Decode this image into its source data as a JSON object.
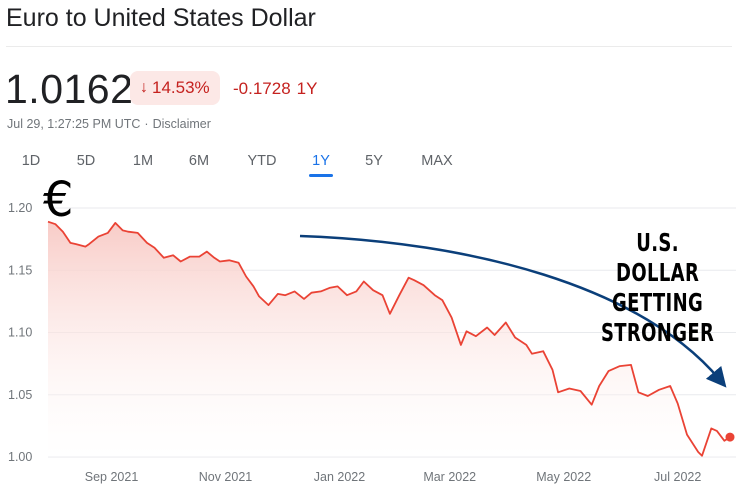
{
  "header": {
    "title": "Euro to United States Dollar",
    "price": "1.0162",
    "percent_change": "14.53%",
    "abs_change": "-0.1728",
    "period": "1Y",
    "timestamp": "Jul 29, 1:27:25 PM UTC",
    "disclaimer": "Disclaimer"
  },
  "ranges": [
    "1D",
    "5D",
    "1M",
    "6M",
    "YTD",
    "1Y",
    "5Y",
    "MAX"
  ],
  "active_range": "1Y",
  "colors": {
    "line": "#ea4335",
    "fill_top": "#f8c9c4",
    "badge_bg": "#fce8e6",
    "badge_text": "#c5221f",
    "accent": "#1a73e8",
    "arrow": "#0b3f7a"
  },
  "annotation": {
    "symbol": "€",
    "lines": [
      "U.S. DOLLAR",
      "GETTING",
      "STRONGER"
    ]
  },
  "chart_data": {
    "type": "area",
    "ylim": [
      1.0,
      1.2
    ],
    "grid": true,
    "yticks": [
      "1.20",
      "1.15",
      "1.10",
      "1.05",
      "1.00"
    ],
    "ytick_values": [
      1.2,
      1.15,
      1.1,
      1.05,
      1.0
    ],
    "xticks": [
      "Sep 2021",
      "Nov 2021",
      "Jan 2022",
      "Mar 2022",
      "May 2022",
      "Jul 2022"
    ],
    "xtick_values": [
      "2021-09-01",
      "2021-11-01",
      "2022-01-01",
      "2022-03-01",
      "2022-05-01",
      "2022-07-01"
    ],
    "x_range": [
      "2021-07-29",
      "2022-07-29"
    ],
    "series": [
      {
        "x": [
          "2021-07-29",
          "2021-08-02",
          "2021-08-06",
          "2021-08-10",
          "2021-08-13",
          "2021-08-18",
          "2021-08-20",
          "2021-08-25",
          "2021-08-30",
          "2021-09-03",
          "2021-09-07",
          "2021-09-10",
          "2021-09-15",
          "2021-09-20",
          "2021-09-24",
          "2021-09-29",
          "2021-10-04",
          "2021-10-08",
          "2021-10-13",
          "2021-10-18",
          "2021-10-22",
          "2021-10-26",
          "2021-10-29",
          "2021-11-03",
          "2021-11-08",
          "2021-11-12",
          "2021-11-16",
          "2021-11-19",
          "2021-11-24",
          "2021-11-29",
          "2021-12-03",
          "2021-12-08",
          "2021-12-13",
          "2021-12-17",
          "2021-12-22",
          "2021-12-27",
          "2021-12-31",
          "2022-01-05",
          "2022-01-10",
          "2022-01-14",
          "2022-01-19",
          "2022-01-24",
          "2022-01-28",
          "2022-02-02",
          "2022-02-07",
          "2022-02-10",
          "2022-02-15",
          "2022-02-21",
          "2022-02-25",
          "2022-03-02",
          "2022-03-07",
          "2022-03-10",
          "2022-03-15",
          "2022-03-21",
          "2022-03-25",
          "2022-03-31",
          "2022-04-05",
          "2022-04-11",
          "2022-04-14",
          "2022-04-20",
          "2022-04-25",
          "2022-04-28",
          "2022-05-04",
          "2022-05-10",
          "2022-05-16",
          "2022-05-20",
          "2022-05-25",
          "2022-05-31",
          "2022-06-06",
          "2022-06-10",
          "2022-06-15",
          "2022-06-21",
          "2022-06-27",
          "2022-07-01",
          "2022-07-06",
          "2022-07-12",
          "2022-07-14",
          "2022-07-19",
          "2022-07-22",
          "2022-07-26",
          "2022-07-29"
        ],
        "y": [
          1.189,
          1.187,
          1.181,
          1.172,
          1.171,
          1.169,
          1.171,
          1.177,
          1.18,
          1.188,
          1.182,
          1.181,
          1.18,
          1.172,
          1.168,
          1.16,
          1.162,
          1.157,
          1.161,
          1.161,
          1.165,
          1.16,
          1.157,
          1.158,
          1.156,
          1.145,
          1.137,
          1.129,
          1.122,
          1.131,
          1.13,
          1.133,
          1.127,
          1.132,
          1.133,
          1.136,
          1.137,
          1.13,
          1.133,
          1.141,
          1.134,
          1.13,
          1.115,
          1.13,
          1.144,
          1.142,
          1.138,
          1.13,
          1.126,
          1.112,
          1.09,
          1.101,
          1.097,
          1.104,
          1.098,
          1.108,
          1.096,
          1.09,
          1.083,
          1.085,
          1.07,
          1.052,
          1.055,
          1.053,
          1.042,
          1.057,
          1.069,
          1.073,
          1.074,
          1.052,
          1.049,
          1.054,
          1.057,
          1.043,
          1.018,
          1.004,
          1.001,
          1.023,
          1.021,
          1.013,
          1.016
        ]
      }
    ]
  }
}
